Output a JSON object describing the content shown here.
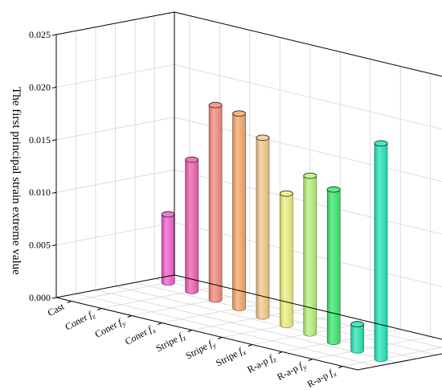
{
  "chart_data": {
    "type": "bar",
    "style": "3d-cylinder",
    "ylabel": "The first principal strain extreme value",
    "ylim": [
      0,
      0.025
    ],
    "yticks": [
      "0.000",
      "0.005",
      "0.010",
      "0.015",
      "0.020",
      "0.025"
    ],
    "grid": true,
    "categories": [
      {
        "base": "Cast",
        "sub": ""
      },
      {
        "base": "Coner ",
        "sub": "z"
      },
      {
        "base": "Coner ",
        "sub": "y"
      },
      {
        "base": "Coner ",
        "sub": "x"
      },
      {
        "base": "Stripe ",
        "sub": "z"
      },
      {
        "base": "Stripe ",
        "sub": "y"
      },
      {
        "base": "Stripe ",
        "sub": "x"
      },
      {
        "base": "R-a-p ",
        "sub": "z"
      },
      {
        "base": "R-a-p ",
        "sub": "y"
      },
      {
        "base": "R-a-p ",
        "sub": "x"
      }
    ],
    "values": [
      0.0065,
      0.0125,
      0.0185,
      0.0185,
      0.017,
      0.0125,
      0.015,
      0.0145,
      0.0025,
      0.0205
    ],
    "colors": [
      "#f25fcd",
      "#f05fb0",
      "#f58a7d",
      "#f6a86c",
      "#f6c98b",
      "#eef07f",
      "#b8f27a",
      "#39ea6f",
      "#27e6b4",
      "#22e6b8"
    ]
  }
}
